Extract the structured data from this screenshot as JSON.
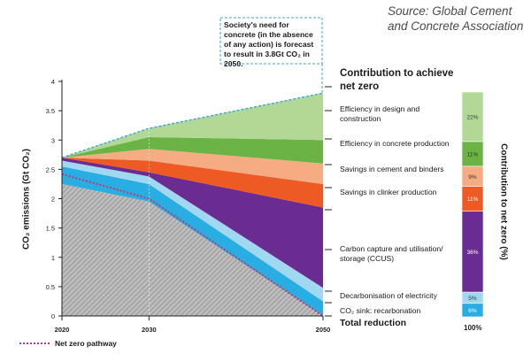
{
  "source": "Source: Global Cement and Concrete Association",
  "callout": "Society's need for concrete (in the absence of any action) is forecast to result in 3.8Gt CO₂ in 2050.",
  "contribution_title": "Contribution to achieve net zero",
  "y_axis_label": "CO₂ emissions (Gt CO₂)",
  "right_axis_label": "Contribution to net zero (%)",
  "total_reduction_label": "Total reduction",
  "total_percent": "100%",
  "legend": {
    "net_zero": "Net zero pathway"
  },
  "colors": {
    "design": "#b2d896",
    "concrete": "#6ab344",
    "cement_binders": "#f6ac82",
    "clinker": "#ee5a24",
    "ccus": "#6a2c91",
    "electricity": "#9fd8f0",
    "recarbonation": "#29aee3",
    "baseline_hatch": "#a6a6a6",
    "net_zero": "#d0306e"
  },
  "chart_data": {
    "type": "area",
    "x": [
      2020,
      2030,
      2050
    ],
    "ylim": [
      0,
      4
    ],
    "y_ticks": [
      "0",
      "0.5",
      "1",
      "1.5",
      "2",
      "2.5",
      "3",
      "3.5",
      "4"
    ],
    "x_ticks": [
      "2020",
      "2030",
      "2050"
    ],
    "xlabel": "",
    "ylabel": "CO₂ emissions (Gt CO₂)",
    "baseline_forecast": [
      2.7,
      3.2,
      3.8
    ],
    "series": [
      {
        "name": "CO₂ sink: recarbonation",
        "top": [
          2.55,
          2.25,
          0.25
        ],
        "share": "6%"
      },
      {
        "name": "Decarbonisation of electricity",
        "top": [
          2.65,
          2.38,
          0.48
        ],
        "share": "5%"
      },
      {
        "name": "Carbon capture and utilisation/ storage (CCUS)",
        "top": [
          2.7,
          2.45,
          1.85
        ],
        "share": "36%"
      },
      {
        "name": "Savings in clinker production",
        "top": [
          2.7,
          2.65,
          2.25
        ],
        "share": "11%"
      },
      {
        "name": "Savings in cement and binders",
        "top": [
          2.7,
          2.85,
          2.6
        ],
        "share": "9%"
      },
      {
        "name": "Efficiency in concrete production",
        "top": [
          2.7,
          3.05,
          3.0
        ],
        "share": "11%"
      },
      {
        "name": "Efficiency in design and construction",
        "top": [
          2.7,
          3.2,
          3.8
        ],
        "share": "22%"
      }
    ],
    "gross_emissions": [
      2.25,
      1.95,
      0.0
    ],
    "net_zero_pathway": [
      2.42,
      2.0,
      0.0
    ]
  }
}
